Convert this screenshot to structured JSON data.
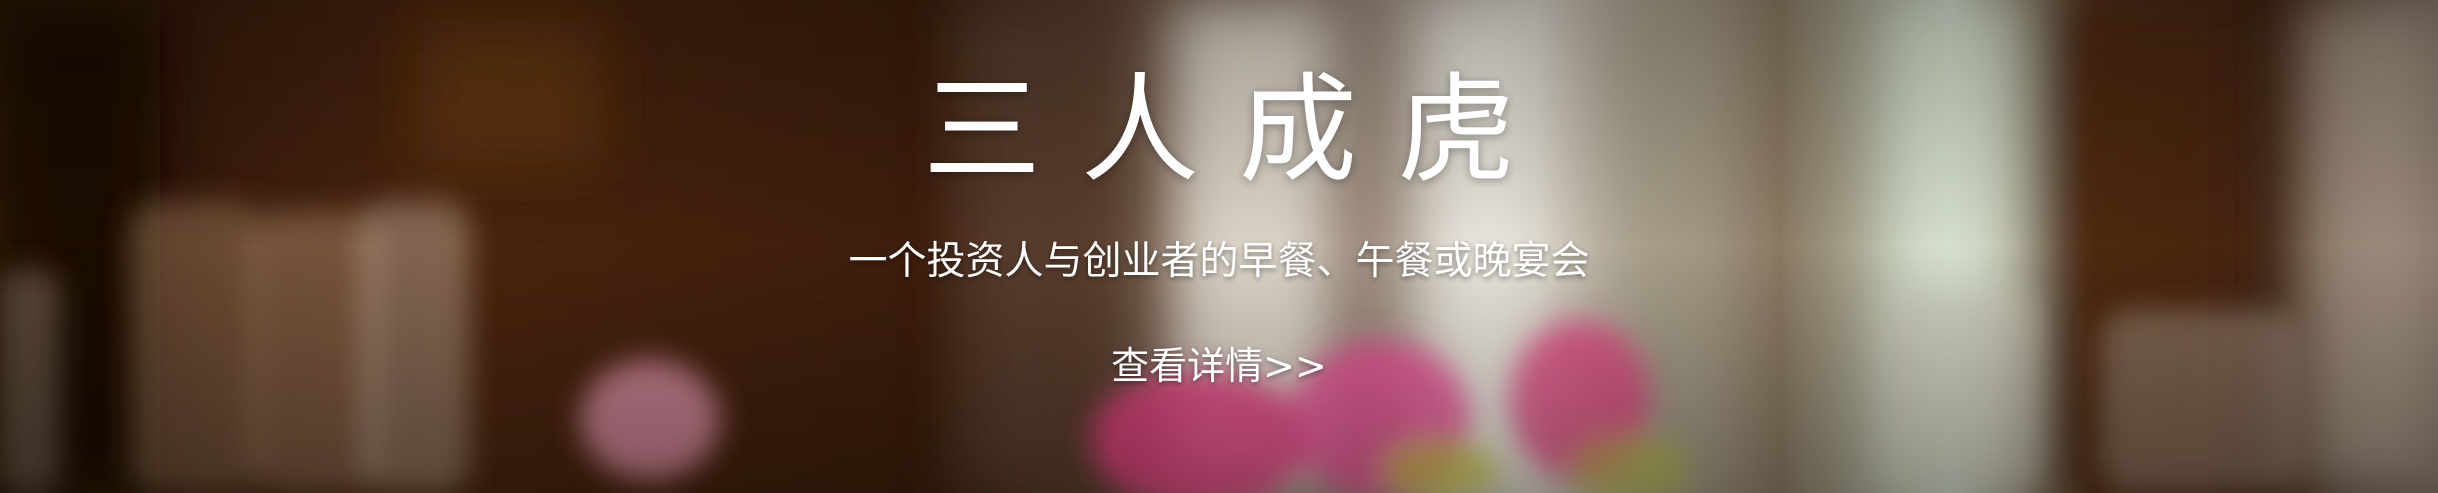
{
  "banner": {
    "title": "三人成虎",
    "subtitle": "一个投资人与创业者的早餐、午餐或晚宴会",
    "link_label": "查看详情>>"
  },
  "colors": {
    "text": "#ffffff",
    "background_dark": "#2a160b",
    "accent_pink": "#e0407f"
  }
}
